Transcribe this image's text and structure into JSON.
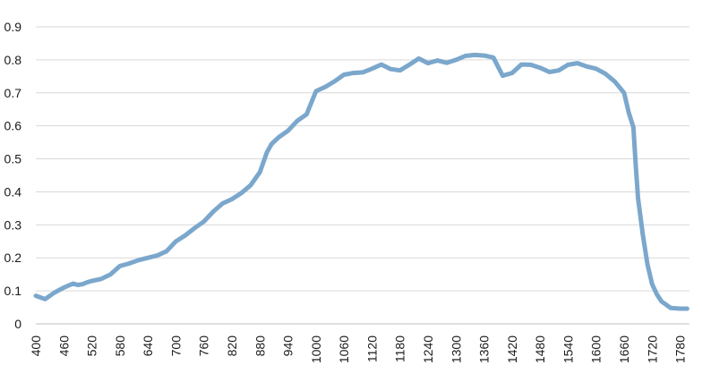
{
  "chart_data": {
    "type": "line",
    "title": "",
    "xlabel": "",
    "ylabel": "",
    "xlim": [
      400,
      1800
    ],
    "ylim": [
      0,
      0.9
    ],
    "grid": "horizontal",
    "x_ticks": [
      400,
      460,
      520,
      580,
      640,
      700,
      760,
      820,
      880,
      940,
      1000,
      1060,
      1120,
      1180,
      1240,
      1300,
      1360,
      1420,
      1480,
      1540,
      1600,
      1660,
      1720,
      1780
    ],
    "x_tick_labels": [
      "400",
      "460",
      "520",
      "580",
      "640",
      "700",
      "760",
      "820",
      "880",
      "940",
      "1000",
      "1060",
      "1120",
      "1180",
      "1240",
      "1300",
      "1360",
      "1420",
      "1480",
      "1540",
      "1600",
      "1660",
      "1720",
      "1780"
    ],
    "y_ticks": [
      0,
      0.1,
      0.2,
      0.3,
      0.4,
      0.5,
      0.6,
      0.7,
      0.8,
      0.9
    ],
    "y_tick_labels": [
      "0",
      "0.1",
      "0.2",
      "0.3",
      "0.4",
      "0.5",
      "0.6",
      "0.7",
      "0.8",
      "0.9"
    ],
    "series": [
      {
        "color": "#7ba7cc",
        "x": [
          400,
          420,
          440,
          460,
          480,
          490,
          500,
          510,
          520,
          540,
          560,
          580,
          600,
          620,
          640,
          660,
          680,
          700,
          720,
          740,
          760,
          780,
          800,
          820,
          840,
          860,
          880,
          895,
          905,
          920,
          940,
          960,
          980,
          1000,
          1020,
          1040,
          1060,
          1080,
          1100,
          1120,
          1140,
          1160,
          1180,
          1200,
          1220,
          1240,
          1260,
          1280,
          1300,
          1320,
          1340,
          1360,
          1380,
          1400,
          1420,
          1440,
          1460,
          1480,
          1500,
          1520,
          1540,
          1560,
          1580,
          1600,
          1620,
          1640,
          1660,
          1670,
          1680,
          1685,
          1690,
          1700,
          1710,
          1720,
          1730,
          1740,
          1760,
          1780,
          1795
        ],
        "y": [
          0.085,
          0.075,
          0.095,
          0.11,
          0.122,
          0.118,
          0.12,
          0.126,
          0.13,
          0.136,
          0.15,
          0.175,
          0.183,
          0.193,
          0.2,
          0.207,
          0.22,
          0.25,
          0.268,
          0.29,
          0.31,
          0.34,
          0.365,
          0.378,
          0.396,
          0.42,
          0.46,
          0.52,
          0.545,
          0.565,
          0.585,
          0.615,
          0.635,
          0.705,
          0.718,
          0.735,
          0.755,
          0.76,
          0.762,
          0.773,
          0.786,
          0.772,
          0.768,
          0.785,
          0.804,
          0.79,
          0.798,
          0.791,
          0.8,
          0.812,
          0.815,
          0.813,
          0.807,
          0.752,
          0.76,
          0.786,
          0.785,
          0.776,
          0.763,
          0.768,
          0.785,
          0.79,
          0.78,
          0.773,
          0.758,
          0.734,
          0.7,
          0.64,
          0.595,
          0.48,
          0.38,
          0.27,
          0.18,
          0.12,
          0.09,
          0.068,
          0.048,
          0.046,
          0.046
        ]
      }
    ]
  }
}
